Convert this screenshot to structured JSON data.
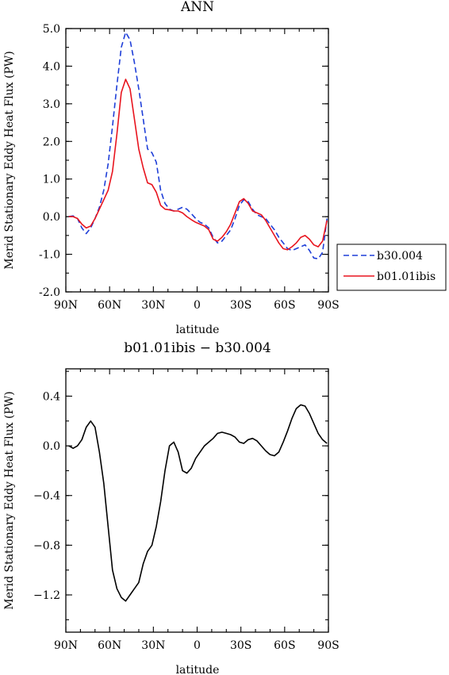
{
  "chart_data": [
    {
      "type": "line",
      "title": "ANN",
      "xlabel": "latitude",
      "ylabel": "Merid Stationary Eddy Heat Flux (PW)",
      "x_tick_labels": [
        "90N",
        "60N",
        "30N",
        "0",
        "30S",
        "60S",
        "90S"
      ],
      "x_tick_values": [
        90,
        60,
        30,
        0,
        -30,
        -60,
        -90
      ],
      "xlim": [
        90,
        -90
      ],
      "y_tick_labels": [
        "5.0",
        "4.0",
        "3.0",
        "2.0",
        "1.0",
        "0.0",
        "-1.0",
        "-2.0"
      ],
      "y_tick_values": [
        5,
        4,
        3,
        2,
        1,
        0,
        -1,
        -2
      ],
      "ylim": [
        -2,
        5
      ],
      "grid": false,
      "legend_position": "right",
      "x": [
        88,
        85,
        82,
        79,
        76,
        73,
        70,
        67,
        64,
        61,
        58,
        55,
        52,
        49,
        46,
        43,
        40,
        37,
        34,
        31,
        28,
        25,
        22,
        19,
        16,
        13,
        10,
        7,
        4,
        1,
        -2,
        -5,
        -8,
        -11,
        -14,
        -17,
        -20,
        -23,
        -26,
        -29,
        -32,
        -35,
        -38,
        -41,
        -44,
        -47,
        -50,
        -53,
        -56,
        -59,
        -62,
        -65,
        -68,
        -71,
        -74,
        -77,
        -80,
        -83,
        -86,
        -89
      ],
      "series": [
        {
          "name": "b30.004",
          "color": "#1f3fd8",
          "dash": "dashed",
          "values": [
            0.0,
            0.02,
            -0.05,
            -0.3,
            -0.45,
            -0.3,
            -0.05,
            0.25,
            0.7,
            1.4,
            2.4,
            3.5,
            4.5,
            4.9,
            4.7,
            4.1,
            3.4,
            2.6,
            1.8,
            1.7,
            1.45,
            0.7,
            0.35,
            0.2,
            0.15,
            0.2,
            0.25,
            0.2,
            0.08,
            -0.05,
            -0.15,
            -0.2,
            -0.3,
            -0.55,
            -0.7,
            -0.65,
            -0.5,
            -0.35,
            -0.05,
            0.3,
            0.45,
            0.4,
            0.2,
            0.05,
            0.0,
            -0.05,
            -0.2,
            -0.35,
            -0.55,
            -0.7,
            -0.85,
            -0.9,
            -0.85,
            -0.8,
            -0.75,
            -0.9,
            -1.1,
            -1.12,
            -0.95,
            -0.05
          ]
        },
        {
          "name": "b01.01ibis",
          "color": "#e8141e",
          "dash": "solid",
          "values": [
            0.0,
            0.0,
            -0.05,
            -0.2,
            -0.3,
            -0.25,
            -0.05,
            0.2,
            0.45,
            0.7,
            1.2,
            2.2,
            3.3,
            3.65,
            3.4,
            2.6,
            1.8,
            1.3,
            0.9,
            0.85,
            0.65,
            0.3,
            0.2,
            0.18,
            0.15,
            0.15,
            0.1,
            0.0,
            -0.08,
            -0.15,
            -0.2,
            -0.25,
            -0.35,
            -0.6,
            -0.65,
            -0.55,
            -0.4,
            -0.2,
            0.1,
            0.4,
            0.48,
            0.35,
            0.15,
            0.1,
            0.05,
            -0.1,
            -0.3,
            -0.5,
            -0.7,
            -0.85,
            -0.88,
            -0.8,
            -0.7,
            -0.55,
            -0.5,
            -0.6,
            -0.75,
            -0.8,
            -0.65,
            -0.1
          ]
        }
      ]
    },
    {
      "type": "line",
      "title": "b01.01ibis − b30.004",
      "xlabel": "latitude",
      "ylabel": "Merid Stationary Eddy Heat Flux (PW)",
      "x_tick_labels": [
        "90N",
        "60N",
        "30N",
        "0",
        "30S",
        "60S",
        "90S"
      ],
      "x_tick_values": [
        90,
        60,
        30,
        0,
        -30,
        -60,
        -90
      ],
      "xlim": [
        90,
        -90
      ],
      "y_tick_labels": [
        "0.4",
        "0.0",
        "−0.4",
        "−0.8",
        "−1.2"
      ],
      "y_tick_values": [
        0.4,
        0.0,
        -0.4,
        -0.8,
        -1.2
      ],
      "ylim": [
        -1.5,
        0.62
      ],
      "grid": false,
      "x": [
        88,
        85,
        82,
        79,
        76,
        73,
        70,
        67,
        64,
        61,
        58,
        55,
        52,
        49,
        46,
        43,
        40,
        37,
        34,
        31,
        28,
        25,
        22,
        19,
        16,
        13,
        10,
        7,
        4,
        1,
        -2,
        -5,
        -8,
        -11,
        -14,
        -17,
        -20,
        -23,
        -26,
        -29,
        -32,
        -35,
        -38,
        -41,
        -44,
        -47,
        -50,
        -53,
        -56,
        -59,
        -62,
        -65,
        -68,
        -71,
        -74,
        -77,
        -80,
        -83,
        -86,
        -89
      ],
      "series": [
        {
          "color": "#000000",
          "dash": "solid",
          "values": [
            0.0,
            -0.02,
            0.0,
            0.05,
            0.15,
            0.2,
            0.15,
            -0.05,
            -0.3,
            -0.65,
            -1.0,
            -1.15,
            -1.22,
            -1.25,
            -1.2,
            -1.15,
            -1.1,
            -0.95,
            -0.85,
            -0.8,
            -0.65,
            -0.45,
            -0.2,
            0.0,
            0.03,
            -0.05,
            -0.2,
            -0.22,
            -0.18,
            -0.1,
            -0.05,
            0.0,
            0.03,
            0.06,
            0.1,
            0.11,
            0.1,
            0.09,
            0.07,
            0.03,
            0.02,
            0.05,
            0.06,
            0.04,
            0.0,
            -0.04,
            -0.07,
            -0.08,
            -0.05,
            0.03,
            0.12,
            0.22,
            0.3,
            0.33,
            0.32,
            0.26,
            0.18,
            0.1,
            0.05,
            0.02
          ]
        }
      ]
    }
  ]
}
